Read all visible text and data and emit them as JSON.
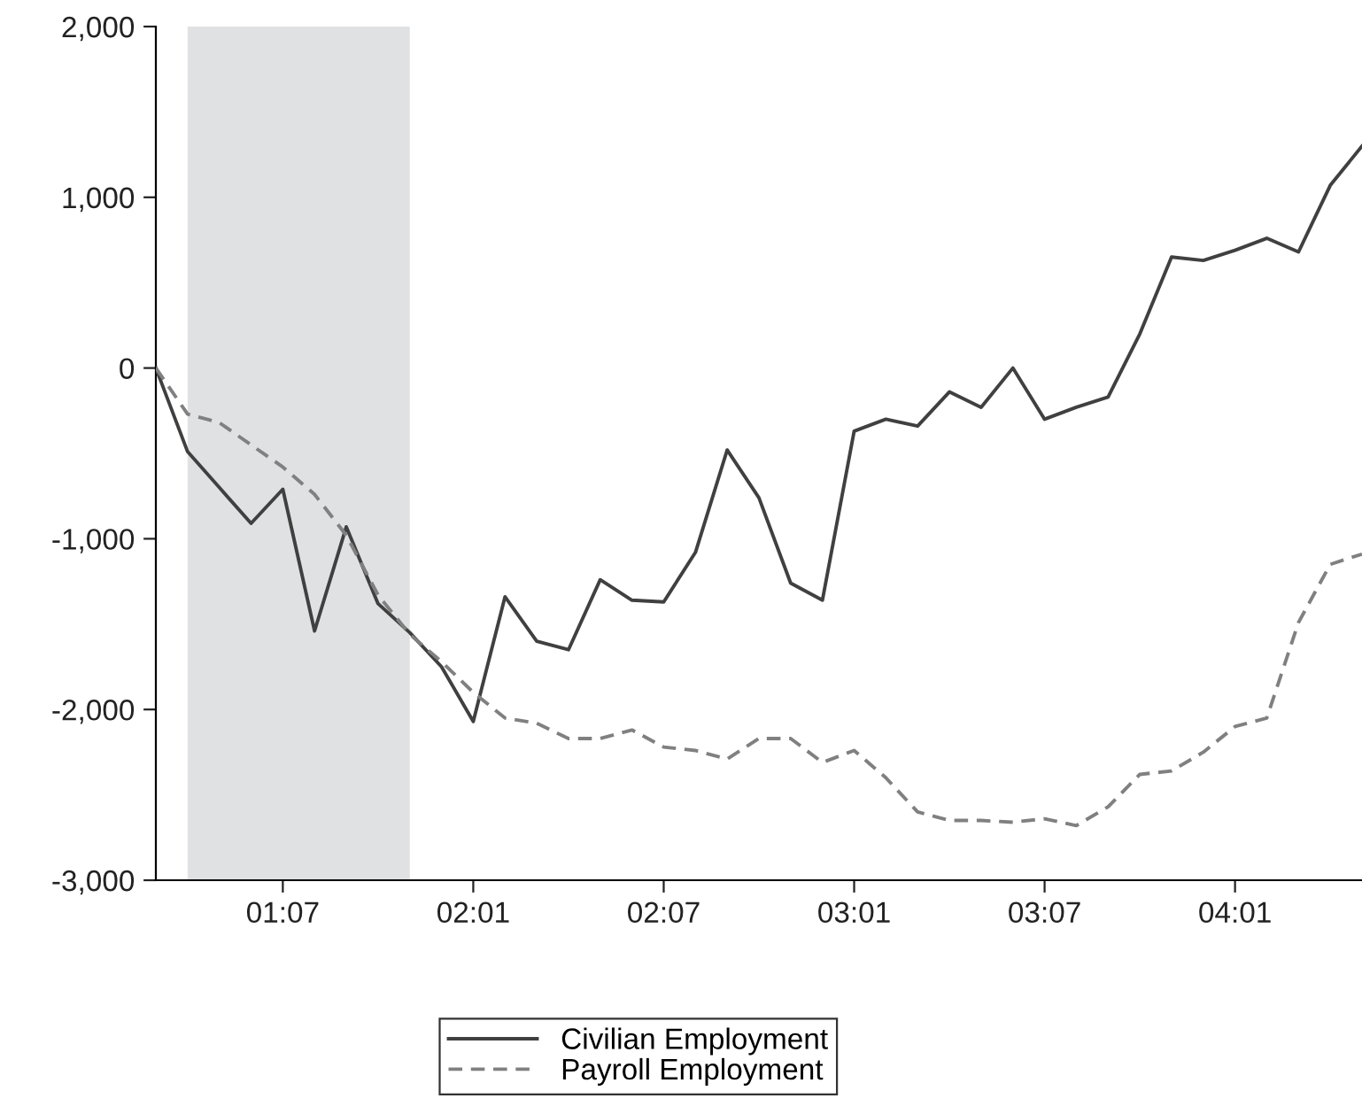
{
  "chart_data": {
    "type": "line",
    "categories": [
      null,
      null,
      null,
      null,
      "01:07",
      null,
      null,
      null,
      null,
      null,
      "02:01",
      null,
      null,
      null,
      null,
      null,
      "02:07",
      null,
      null,
      null,
      null,
      null,
      "03:01",
      null,
      null,
      null,
      null,
      null,
      "03:07",
      null,
      null,
      null,
      null,
      null,
      "04:01",
      null,
      null,
      null,
      null
    ],
    "series": [
      {
        "name": "Civilian Employment",
        "color": "#404040",
        "line_style": "solid",
        "values": [
          0,
          -490,
          -700,
          -910,
          -710,
          -1540,
          -930,
          -1380,
          -1550,
          -1750,
          -2070,
          -1340,
          -1600,
          -1650,
          -1240,
          -1360,
          -1370,
          -1080,
          -480,
          -760,
          -1260,
          -1360,
          -370,
          -300,
          -340,
          -140,
          -230,
          0,
          -300,
          -230,
          -170,
          200,
          650,
          630,
          690,
          760,
          680,
          1070,
          1300
        ]
      },
      {
        "name": "Payroll Employment",
        "color": "#808080",
        "line_style": "dashed",
        "values": [
          0,
          -270,
          -320,
          -450,
          -580,
          -740,
          -980,
          -1330,
          -1560,
          -1720,
          -1900,
          -2050,
          -2080,
          -2170,
          -2170,
          -2120,
          -2220,
          -2240,
          -2290,
          -2170,
          -2170,
          -2310,
          -2240,
          -2400,
          -2600,
          -2650,
          -2650,
          -2660,
          -2640,
          -2680,
          -2570,
          -2380,
          -2360,
          -2250,
          -2100,
          -2050,
          -1490,
          -1150,
          -1090
        ]
      }
    ],
    "ylim": [
      -3000,
      2000
    ],
    "yticks": [
      {
        "value": -3000,
        "label": "-3,000"
      },
      {
        "value": -2000,
        "label": "-2,000"
      },
      {
        "value": -1000,
        "label": "-1,000"
      },
      {
        "value": 0,
        "label": "0"
      },
      {
        "value": 1000,
        "label": "1,000"
      },
      {
        "value": 2000,
        "label": "2,000"
      }
    ],
    "grid": false,
    "legend": "bottom",
    "marker": "none"
  }
}
